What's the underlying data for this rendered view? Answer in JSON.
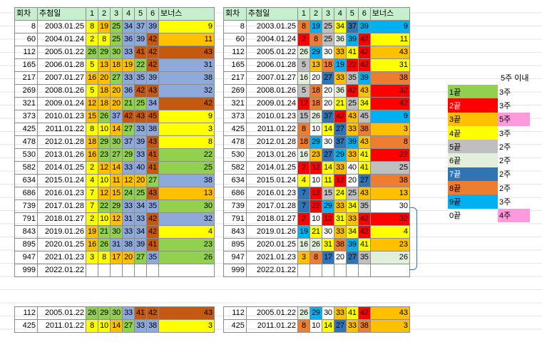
{
  "headers": {
    "round": "회차",
    "date": "추첨일",
    "n1": "1",
    "n2": "2",
    "n3": "3",
    "n4": "4",
    "n5": "5",
    "n6": "6",
    "bonus": "보너스"
  },
  "rows": [
    {
      "round": "8",
      "date": "2003.01.25",
      "nums": [
        "8",
        "19",
        "25",
        "34",
        "37",
        "39"
      ],
      "bonus": "9"
    },
    {
      "round": "60",
      "date": "2004.01.24",
      "nums": [
        "2",
        "8",
        "25",
        "36",
        "39",
        "42"
      ],
      "bonus": "11"
    },
    {
      "round": "112",
      "date": "2005.01.22",
      "nums": [
        "26",
        "29",
        "30",
        "33",
        "41",
        "42"
      ],
      "bonus": "43"
    },
    {
      "round": "165",
      "date": "2006.01.28",
      "nums": [
        "5",
        "13",
        "18",
        "19",
        "22",
        "42"
      ],
      "bonus": "31"
    },
    {
      "round": "217",
      "date": "2007.01.27",
      "nums": [
        "16",
        "20",
        "27",
        "33",
        "35",
        "39"
      ],
      "bonus": "38"
    },
    {
      "round": "269",
      "date": "2008.01.26",
      "nums": [
        "5",
        "18",
        "20",
        "36",
        "42",
        "43"
      ],
      "bonus": "32"
    },
    {
      "round": "321",
      "date": "2009.01.24",
      "nums": [
        "12",
        "18",
        "20",
        "21",
        "25",
        "34"
      ],
      "bonus": "42"
    },
    {
      "round": "373",
      "date": "2010.01.23",
      "nums": [
        "15",
        "26",
        "37",
        "42",
        "43",
        "45"
      ],
      "bonus": "9"
    },
    {
      "round": "425",
      "date": "2011.01.22",
      "nums": [
        "8",
        "10",
        "14",
        "27",
        "33",
        "38"
      ],
      "bonus": "3"
    },
    {
      "round": "478",
      "date": "2012.01.28",
      "nums": [
        "18",
        "29",
        "30",
        "37",
        "39",
        "43"
      ],
      "bonus": "8"
    },
    {
      "round": "530",
      "date": "2013.01.26",
      "nums": [
        "16",
        "23",
        "27",
        "29",
        "33",
        "41"
      ],
      "bonus": "22"
    },
    {
      "round": "582",
      "date": "2014.01.25",
      "nums": [
        "2",
        "12",
        "14",
        "33",
        "40",
        "41"
      ],
      "bonus": "25"
    },
    {
      "round": "634",
      "date": "2015.01.24",
      "nums": [
        "4",
        "10",
        "11",
        "12",
        "20",
        "27"
      ],
      "bonus": "38"
    },
    {
      "round": "686",
      "date": "2016.01.23",
      "nums": [
        "7",
        "12",
        "15",
        "24",
        "25",
        "43"
      ],
      "bonus": "13"
    },
    {
      "round": "739",
      "date": "2017.01.28",
      "nums": [
        "7",
        "22",
        "29",
        "33",
        "34",
        "35"
      ],
      "bonus": "30"
    },
    {
      "round": "791",
      "date": "2018.01.27",
      "nums": [
        "2",
        "10",
        "12",
        "31",
        "33",
        "42"
      ],
      "bonus": "32"
    },
    {
      "round": "843",
      "date": "2019.01.26",
      "nums": [
        "19",
        "21",
        "30",
        "33",
        "34",
        "42"
      ],
      "bonus": "4"
    },
    {
      "round": "895",
      "date": "2020.01.25",
      "nums": [
        "16",
        "26",
        "31",
        "38",
        "39",
        "41"
      ],
      "bonus": "23"
    },
    {
      "round": "947",
      "date": "2021.01.23",
      "nums": [
        "3",
        "8",
        "17",
        "20",
        "27",
        "35"
      ],
      "bonus": "26"
    },
    {
      "round": "999",
      "date": "2022.01.22",
      "nums": [
        "",
        "",
        "",
        "",
        "",
        ""
      ],
      "bonus": ""
    }
  ],
  "extra_rows": [
    {
      "round": "112",
      "date": "2005.01.22",
      "nums": [
        "26",
        "29",
        "30",
        "33",
        "41",
        "42"
      ],
      "bonus": "43"
    },
    {
      "round": "425",
      "date": "2011.01.22",
      "nums": [
        "8",
        "10",
        "14",
        "27",
        "33",
        "38"
      ],
      "bonus": "3"
    }
  ],
  "legend": {
    "title": "5주 이내",
    "items": [
      {
        "key": "1끝",
        "val": "3주"
      },
      {
        "key": "2끝",
        "val": "3주"
      },
      {
        "key": "3끝",
        "val": "5주"
      },
      {
        "key": "4끝",
        "val": "3주"
      },
      {
        "key": "5끝",
        "val": "2주"
      },
      {
        "key": "6끝",
        "val": "2주"
      },
      {
        "key": "7끝",
        "val": "2주"
      },
      {
        "key": "8끝",
        "val": "2주"
      },
      {
        "key": "9끝",
        "val": "3주"
      },
      {
        "key": "0끝",
        "val": "4주"
      }
    ]
  },
  "colors": {
    "end1": "#92d050",
    "end2": "#ff0000",
    "end3": "#ffc000",
    "end4": "#ffff00",
    "end5": "#bfbfbf",
    "end6": "#e2efda",
    "end7": "#2f75b5",
    "end8": "#ed7d31",
    "end9": "#00b0f0",
    "end0": "#ffffff",
    "highlight": "#ff99dd",
    "header": "#c6efce"
  }
}
